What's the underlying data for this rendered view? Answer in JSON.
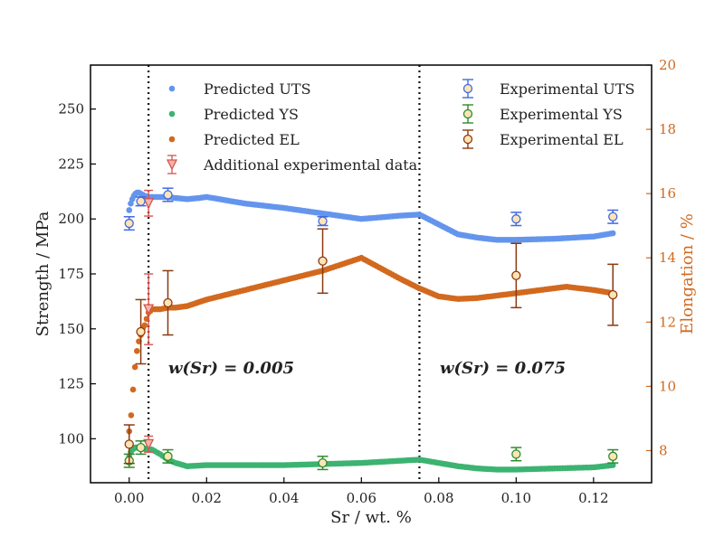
{
  "chart_data": {
    "type": "scatter",
    "xlabel": "Sr / wt. %",
    "ylabel_left": "Strength / MPa",
    "ylabel_right": "Elongation / %",
    "xlim": [
      -0.01,
      0.135
    ],
    "ylim_left": [
      80,
      270
    ],
    "ylim_right": [
      7,
      20
    ],
    "x_ticks": [
      0.0,
      0.02,
      0.04,
      0.06,
      0.08,
      0.1,
      0.12
    ],
    "x_tick_labels": [
      "0.00",
      "0.02",
      "0.04",
      "0.06",
      "0.08",
      "0.10",
      "0.12"
    ],
    "y_left_ticks": [
      100,
      125,
      150,
      175,
      200,
      225,
      250
    ],
    "y_left_tick_labels": [
      "100",
      "125",
      "150",
      "175",
      "200",
      "225",
      "250"
    ],
    "y_right_ticks": [
      8,
      10,
      12,
      14,
      16,
      18,
      20
    ],
    "y_right_tick_labels": [
      "8",
      "10",
      "12",
      "14",
      "16",
      "18",
      "20"
    ],
    "vlines": [
      0.005,
      0.075
    ],
    "annotations": [
      {
        "text": "w(Sr) = 0.005",
        "x": 0.01,
        "y": 132
      },
      {
        "text": "w(Sr) = 0.075",
        "x": 0.08,
        "y": 132
      }
    ],
    "colors": {
      "uts": "#6495ed",
      "ys": "#3cb371",
      "el": "#d2691e",
      "additional": "#d9534f",
      "exp_uts_edge": "#4169e1",
      "exp_ys_edge": "#2e8b2e",
      "exp_el_edge": "#8b3a0f",
      "exp_fill": "#ffe4b5",
      "additional_fill": "#f4b6a8",
      "vline": "#111111",
      "right_axis": "#d2691e"
    },
    "series": [
      {
        "name": "Predicted UTS",
        "kind": "predicted",
        "axis": "left",
        "color_key": "uts",
        "x": [
          0.0,
          0.0004,
          0.0008,
          0.0012,
          0.0016,
          0.002,
          0.0025,
          0.003,
          0.0035,
          0.004,
          0.005,
          0.006,
          0.008,
          0.01,
          0.012,
          0.015,
          0.018,
          0.02,
          0.03,
          0.04,
          0.05,
          0.06,
          0.07,
          0.075,
          0.08,
          0.085,
          0.09,
          0.095,
          0.1,
          0.11,
          0.12,
          0.125
        ],
        "y": [
          204,
          207,
          209,
          210.5,
          211.5,
          212,
          212,
          211.5,
          211,
          210.5,
          210,
          210,
          210,
          210,
          209.5,
          209,
          209.5,
          210,
          207,
          205,
          202.5,
          200,
          201.5,
          202,
          197.5,
          193,
          191.5,
          190.5,
          190.5,
          191,
          192,
          193.5
        ]
      },
      {
        "name": "Predicted YS",
        "kind": "predicted",
        "axis": "left",
        "color_key": "ys",
        "x": [
          0.0,
          0.0004,
          0.0008,
          0.0012,
          0.0016,
          0.002,
          0.0025,
          0.003,
          0.004,
          0.005,
          0.006,
          0.008,
          0.01,
          0.012,
          0.015,
          0.02,
          0.03,
          0.04,
          0.05,
          0.06,
          0.07,
          0.075,
          0.08,
          0.085,
          0.09,
          0.095,
          0.1,
          0.11,
          0.12,
          0.125
        ],
        "y": [
          92,
          94,
          95,
          95.5,
          96,
          96,
          96,
          95.5,
          95.5,
          95.5,
          95,
          93,
          90.5,
          89,
          87.5,
          88,
          88,
          88,
          88.5,
          89,
          90,
          90.5,
          89,
          87.5,
          86.5,
          86,
          86,
          86.5,
          87,
          88
        ]
      },
      {
        "name": "Predicted EL",
        "kind": "predicted",
        "axis": "right",
        "color_key": "el",
        "x": [
          0.0,
          0.0005,
          0.001,
          0.0015,
          0.002,
          0.0025,
          0.003,
          0.0035,
          0.004,
          0.0045,
          0.005,
          0.006,
          0.008,
          0.01,
          0.012,
          0.015,
          0.02,
          0.03,
          0.04,
          0.05,
          0.06,
          0.07,
          0.075,
          0.08,
          0.085,
          0.09,
          0.1,
          0.113,
          0.12,
          0.125
        ],
        "y": [
          8.6,
          9.1,
          9.9,
          10.6,
          11.1,
          11.4,
          11.6,
          11.8,
          11.9,
          12.1,
          12.3,
          12.4,
          12.4,
          12.45,
          12.45,
          12.5,
          12.7,
          13.0,
          13.3,
          13.6,
          14.0,
          13.35,
          13.05,
          12.8,
          12.72,
          12.75,
          12.9,
          13.1,
          13.0,
          12.9
        ]
      },
      {
        "name": "Additional experimental data",
        "kind": "additional",
        "axis": "right",
        "color_key": "additional",
        "x": [
          0.005,
          0.005,
          0.005
        ],
        "y": [
          15.7,
          12.4,
          8.2
        ],
        "err": [
          0.4,
          1.1,
          0.25
        ]
      },
      {
        "name": "Experimental UTS",
        "kind": "experimental",
        "axis": "left",
        "color_key": "exp_uts_edge",
        "x": [
          0.0,
          0.003,
          0.01,
          0.05,
          0.1,
          0.125
        ],
        "y": [
          198,
          208,
          211,
          199,
          200,
          201
        ],
        "err": [
          3,
          2,
          3,
          2,
          3,
          3
        ]
      },
      {
        "name": "Experimental YS",
        "kind": "experimental",
        "axis": "left",
        "color_key": "exp_ys_edge",
        "x": [
          0.0,
          0.003,
          0.01,
          0.05,
          0.1,
          0.125
        ],
        "y": [
          90,
          96,
          92,
          89,
          93,
          92
        ],
        "err": [
          3,
          3,
          3,
          3,
          3,
          3
        ]
      },
      {
        "name": "Experimental EL",
        "kind": "experimental",
        "axis": "right",
        "color_key": "exp_el_edge",
        "x": [
          0.0,
          0.003,
          0.01,
          0.05,
          0.1,
          0.125
        ],
        "y": [
          8.2,
          11.7,
          12.6,
          13.9,
          13.45,
          12.85
        ],
        "err": [
          0.6,
          1.0,
          1.0,
          1.0,
          1.0,
          0.95
        ]
      }
    ],
    "legend_left": [
      "Predicted UTS",
      "Predicted YS",
      "Predicted EL",
      "Additional experimental data"
    ],
    "legend_right": [
      "Experimental UTS",
      "Experimental YS",
      "Experimental EL"
    ]
  }
}
